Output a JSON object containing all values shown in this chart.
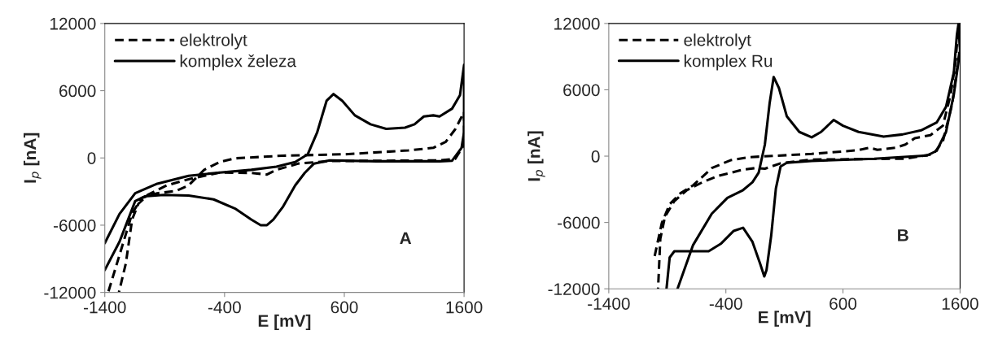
{
  "chart_data": [
    {
      "type": "line",
      "xlabel": "E [mV]",
      "ylabel": "I$_{p}$ [nA]",
      "xlim": [
        -1400,
        1600
      ],
      "xticks": [
        -1400,
        -400,
        600,
        1600
      ],
      "ylim": [
        -12000,
        12000
      ],
      "yticks": [
        -12000,
        -6000,
        0,
        6000,
        12000
      ],
      "grid": false,
      "legend": "top left",
      "marker": "none",
      "annotations": [
        "A"
      ],
      "series": [
        {
          "name": "elektrolyt",
          "color": "#000000",
          "line_style": "dashed",
          "x": [
            -1369,
            -1172,
            -1093,
            -962,
            -805,
            -700,
            -570,
            -439,
            -307,
            85,
            609,
            1133,
            1343,
            1448,
            1526,
            1600,
            1600,
            1526,
            1395,
            478,
            217,
            33,
            -46,
            -177,
            -439,
            -700,
            -884,
            -1041,
            -1120,
            -1172,
            -1224,
            -1282
          ],
          "values": [
            -11900,
            -4960,
            -3570,
            -3150,
            -2950,
            -2450,
            -1060,
            -360,
            -30,
            200,
            330,
            670,
            900,
            1450,
            2560,
            4100,
            1170,
            -80,
            -220,
            -280,
            -500,
            -1060,
            -1480,
            -1340,
            -1300,
            -1900,
            -2450,
            -3300,
            -4100,
            -5500,
            -9400,
            -12000
          ]
        },
        {
          "name": "komplex železa",
          "color": "#000000",
          "line_style": "solid",
          "x": [
            -1400,
            -1277,
            -1146,
            -962,
            -700,
            -439,
            -177,
            33,
            190,
            295,
            374,
            452,
            510,
            583,
            688,
            819,
            950,
            1107,
            1186,
            1264,
            1343,
            1395,
            1500,
            1566,
            1600,
            1600,
            1579,
            1500,
            1395,
            871,
            478,
            347,
            269,
            190,
            85,
            7,
            -46,
            -98,
            -177,
            -307,
            -491,
            -700,
            -910,
            -1067,
            -1146,
            -1277,
            -1400
          ],
          "values": [
            -7600,
            -5000,
            -3150,
            -2300,
            -1600,
            -1300,
            -1060,
            -780,
            -360,
            330,
            2300,
            5100,
            5700,
            5100,
            3800,
            3000,
            2600,
            2700,
            3000,
            3700,
            3800,
            3700,
            4400,
            5600,
            8300,
            2300,
            900,
            -250,
            -300,
            -300,
            -220,
            -500,
            -1340,
            -2450,
            -4400,
            -5500,
            -6000,
            -6000,
            -5500,
            -4550,
            -3700,
            -3350,
            -3300,
            -3430,
            -3850,
            -7470,
            -10000
          ]
        }
      ]
    },
    {
      "type": "line",
      "xlabel": "E [mV]",
      "ylabel": "I$_{p}$ [nA]",
      "xlim": [
        -1400,
        1600
      ],
      "xticks": [
        -1400,
        -400,
        600,
        1600
      ],
      "ylim": [
        -12000,
        12000
      ],
      "yticks": [
        -12000,
        -6000,
        0,
        6000,
        12000
      ],
      "grid": false,
      "legend": "top left",
      "marker": "none",
      "annotations": [
        "B"
      ],
      "series": [
        {
          "name": "elektrolyt",
          "color": "#000000",
          "line_style": "dashed",
          "x": [
            -1008,
            -947,
            -880,
            -787,
            -680,
            -520,
            -360,
            -200,
            333,
            733,
            827,
            893,
            1053,
            1133,
            1213,
            1347,
            1453,
            1520,
            1560,
            1587,
            1600,
            1533,
            1453,
            1373,
            1133,
            333,
            67,
            -67,
            -147,
            -253,
            -467,
            -600,
            -733,
            -840,
            -920,
            -960,
            -979
          ],
          "values": [
            -9030,
            -6050,
            -4350,
            -3350,
            -2640,
            -1080,
            -370,
            -90,
            200,
            540,
            770,
            570,
            770,
            1050,
            1620,
            1900,
            2750,
            5600,
            8430,
            11840,
            9860,
            4740,
            1330,
            200,
            -230,
            -310,
            -650,
            -1140,
            -1080,
            -1220,
            -1790,
            -2360,
            -3070,
            -4060,
            -5480,
            -7470,
            -12000
          ]
        },
        {
          "name": "komplex Ru",
          "color": "#000000",
          "line_style": "solid",
          "x": [
            -813,
            -680,
            -520,
            -387,
            -253,
            -173,
            -120,
            -67,
            -27,
            8,
            53,
            120,
            227,
            333,
            413,
            520,
            600,
            733,
            947,
            1107,
            1267,
            1400,
            1480,
            1547,
            1573,
            1587,
            1600,
            1547,
            1480,
            1400,
            1320,
            867,
            333,
            120,
            67,
            27,
            -13,
            -53,
            -72,
            -107,
            -173,
            -253,
            -333,
            -440,
            -547,
            -733,
            -840,
            -880,
            -907
          ],
          "values": [
            -12000,
            -8040,
            -5200,
            -3780,
            -3070,
            -2360,
            -1500,
            1050,
            4740,
            7160,
            6160,
            3610,
            2190,
            1700,
            2190,
            3270,
            2750,
            2190,
            1760,
            1960,
            2330,
            3040,
            4460,
            7580,
            11000,
            12000,
            9570,
            5600,
            2190,
            480,
            60,
            -230,
            -430,
            -600,
            -940,
            -2930,
            -7190,
            -10310,
            -10880,
            -9740,
            -7750,
            -6480,
            -6760,
            -7900,
            -8600,
            -8600,
            -8600,
            -9170,
            -12000
          ]
        }
      ]
    }
  ]
}
